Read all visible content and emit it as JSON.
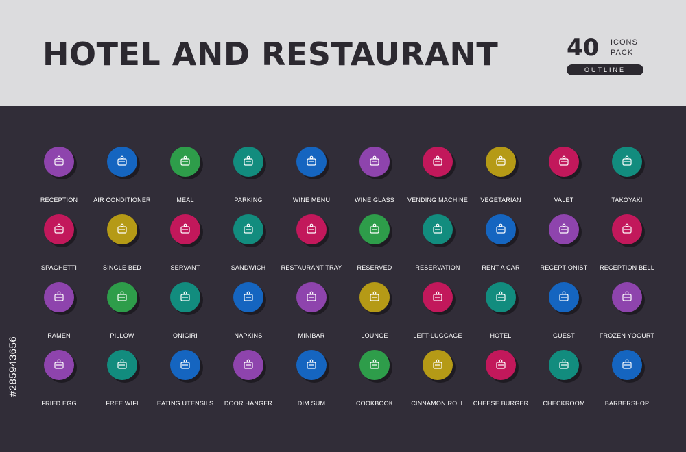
{
  "header": {
    "title": "HOTEL AND RESTAURANT",
    "badge_number": "40",
    "badge_line1": "ICONS",
    "badge_line2": "PACK",
    "badge_style": "OUTLINE"
  },
  "stock_id": "#285943656",
  "icons": [
    {
      "label": "RECEPTION",
      "icon": "reception-icon",
      "color": "#8e44ad"
    },
    {
      "label": "AIR CONDITIONER",
      "icon": "air-conditioner-icon",
      "color": "#1565c0"
    },
    {
      "label": "MEAL",
      "icon": "meal-icon",
      "color": "#2e9d4a"
    },
    {
      "label": "PARKING",
      "icon": "parking-icon",
      "color": "#128c7e"
    },
    {
      "label": "WINE MENU",
      "icon": "wine-menu-icon",
      "color": "#1565c0"
    },
    {
      "label": "WINE GLASS",
      "icon": "wine-glass-icon",
      "color": "#8e44ad"
    },
    {
      "label": "VENDING MACHINE",
      "icon": "vending-machine-icon",
      "color": "#c2185b"
    },
    {
      "label": "VEGETARIAN",
      "icon": "vegetarian-icon",
      "color": "#b59a16"
    },
    {
      "label": "VALET",
      "icon": "valet-icon",
      "color": "#c2185b"
    },
    {
      "label": "TAKOYAKI",
      "icon": "takoyaki-icon",
      "color": "#128c7e"
    },
    {
      "label": "SPAGHETTI",
      "icon": "spaghetti-icon",
      "color": "#c2185b"
    },
    {
      "label": "SINGLE BED",
      "icon": "single-bed-icon",
      "color": "#b59a16"
    },
    {
      "label": "SERVANT",
      "icon": "servant-icon",
      "color": "#c2185b"
    },
    {
      "label": "SANDWICH",
      "icon": "sandwich-icon",
      "color": "#128c7e"
    },
    {
      "label": "RESTAURANT TRAY",
      "icon": "restaurant-tray-icon",
      "color": "#c2185b"
    },
    {
      "label": "RESERVED",
      "icon": "reserved-icon",
      "color": "#2e9d4a"
    },
    {
      "label": "RESERVATION",
      "icon": "reservation-icon",
      "color": "#128c7e"
    },
    {
      "label": "RENT A CAR",
      "icon": "rent-a-car-icon",
      "color": "#1565c0"
    },
    {
      "label": "RECEPTIONIST",
      "icon": "receptionist-icon",
      "color": "#8e44ad"
    },
    {
      "label": "RECEPTION BELL",
      "icon": "reception-bell-icon",
      "color": "#c2185b"
    },
    {
      "label": "RAMEN",
      "icon": "ramen-icon",
      "color": "#8e44ad"
    },
    {
      "label": "PILLOW",
      "icon": "pillow-icon",
      "color": "#2e9d4a"
    },
    {
      "label": "ONIGIRI",
      "icon": "onigiri-icon",
      "color": "#128c7e"
    },
    {
      "label": "NAPKINS",
      "icon": "napkins-icon",
      "color": "#1565c0"
    },
    {
      "label": "MINIBAR",
      "icon": "minibar-icon",
      "color": "#8e44ad"
    },
    {
      "label": "LOUNGE",
      "icon": "lounge-icon",
      "color": "#b59a16"
    },
    {
      "label": "LEFT-LUGGAGE",
      "icon": "left-luggage-icon",
      "color": "#c2185b"
    },
    {
      "label": "HOTEL",
      "icon": "hotel-icon",
      "color": "#128c7e"
    },
    {
      "label": "GUEST",
      "icon": "guest-icon",
      "color": "#1565c0"
    },
    {
      "label": "FROZEN YOGURT",
      "icon": "frozen-yogurt-icon",
      "color": "#8e44ad"
    },
    {
      "label": "FRIED EGG",
      "icon": "fried-egg-icon",
      "color": "#8e44ad"
    },
    {
      "label": "FREE WIFI",
      "icon": "free-wifi-icon",
      "color": "#128c7e"
    },
    {
      "label": "EATING UTENSILS",
      "icon": "eating-utensils-icon",
      "color": "#1565c0"
    },
    {
      "label": "DOOR HANGER",
      "icon": "door-hanger-icon",
      "color": "#8e44ad"
    },
    {
      "label": "DIM SUM",
      "icon": "dim-sum-icon",
      "color": "#1565c0"
    },
    {
      "label": "COOKBOOK",
      "icon": "cookbook-icon",
      "color": "#2e9d4a"
    },
    {
      "label": "CINNAMON ROLL",
      "icon": "cinnamon-roll-icon",
      "color": "#b59a16"
    },
    {
      "label": "CHEESE BURGER",
      "icon": "cheese-burger-icon",
      "color": "#c2185b"
    },
    {
      "label": "CHECKROOM",
      "icon": "checkroom-icon",
      "color": "#128c7e"
    },
    {
      "label": "BARBERSHOP",
      "icon": "barbershop-icon",
      "color": "#1565c0"
    }
  ]
}
